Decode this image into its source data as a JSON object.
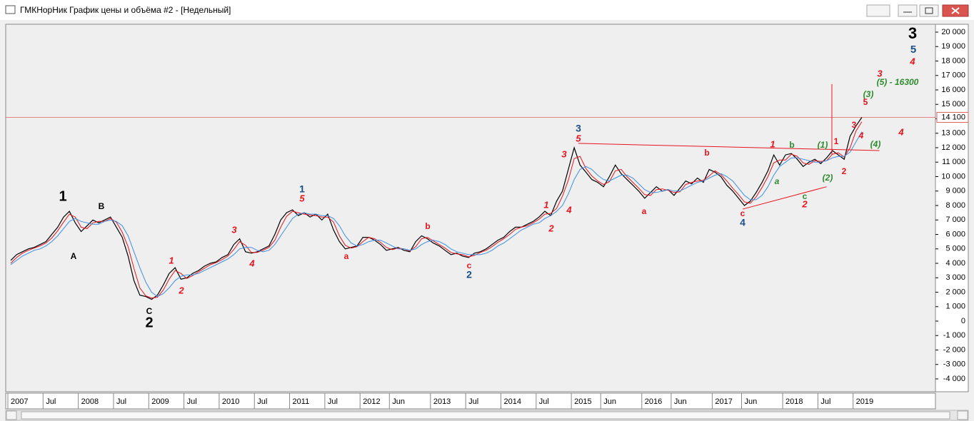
{
  "window": {
    "title": "ГМКНорНик График цены и объёма #2 - [Недельный]"
  },
  "chart_data": {
    "type": "line",
    "categories": [
      "2007",
      null,
      null,
      null,
      null,
      null,
      "Jul",
      null,
      null,
      null,
      null,
      null,
      "2008",
      null,
      null,
      null,
      null,
      null,
      "Jul",
      null,
      null,
      null,
      null,
      null,
      "2009",
      null,
      null,
      null,
      null,
      null,
      "Jul",
      null,
      null,
      null,
      null,
      null,
      "2010",
      null,
      null,
      null,
      null,
      null,
      "Jul",
      null,
      null,
      null,
      null,
      null,
      "2011",
      null,
      null,
      null,
      null,
      null,
      "Jul",
      null,
      null,
      null,
      null,
      null,
      "2012",
      null,
      null,
      null,
      null,
      "Jun",
      null,
      null,
      null,
      null,
      null,
      null,
      "2013",
      null,
      null,
      null,
      null,
      null,
      "Jul",
      null,
      null,
      null,
      null,
      null,
      "2014",
      null,
      null,
      null,
      null,
      null,
      "Jul",
      null,
      null,
      null,
      null,
      null,
      "2015",
      null,
      null,
      null,
      null,
      "Jun",
      null,
      null,
      null,
      null,
      null,
      null,
      "2016",
      null,
      null,
      null,
      null,
      "Jun",
      null,
      null,
      null,
      null,
      null,
      null,
      "2017",
      null,
      null,
      null,
      null,
      "Jun",
      null,
      null,
      null,
      null,
      null,
      null,
      "2018",
      null,
      null,
      null,
      null,
      null,
      "Jul",
      null,
      null,
      null,
      null,
      null,
      "2019",
      null
    ],
    "series": [
      {
        "color": "#000000",
        "values": [
          4200,
          4600,
          4800,
          5000,
          5100,
          5300,
          5500,
          6000,
          6500,
          7200,
          7600,
          6800,
          6200,
          6600,
          7000,
          6800,
          7000,
          7200,
          6500,
          5800,
          4500,
          2800,
          1800,
          1700,
          1500,
          1800,
          2500,
          3300,
          3700,
          2900,
          3000,
          3300,
          3500,
          3800,
          4000,
          4100,
          4400,
          4600,
          5300,
          5700,
          4800,
          4700,
          4800,
          5000,
          5200,
          6000,
          7000,
          7500,
          7700,
          7300,
          7500,
          7200,
          7400,
          7000,
          7400,
          6300,
          5500,
          5000,
          5100,
          5200,
          5800,
          5800,
          5600,
          5300,
          4900,
          5000,
          5100,
          4900,
          4800,
          5500,
          5900,
          5700,
          5400,
          5200,
          4900,
          4600,
          4700,
          4500,
          4400,
          4700,
          4800,
          5000,
          5300,
          5600,
          5800,
          6200,
          6500,
          6500,
          6700,
          6900,
          7200,
          7600,
          7300,
          8300,
          9000,
          10500,
          12000,
          10800,
          10300,
          9800,
          9600,
          9300,
          10000,
          10800,
          10200,
          9800,
          9400,
          9000,
          8500,
          8900,
          9300,
          9000,
          9100,
          8700,
          9200,
          9700,
          9500,
          9900,
          9600,
          10500,
          10300,
          10000,
          9400,
          9000,
          8500,
          8000,
          8300,
          8900,
          9600,
          10400,
          11500,
          10800,
          11500,
          11600,
          11200,
          10700,
          11000,
          11200,
          10900,
          11300,
          11800,
          11500,
          11200,
          12800,
          13500,
          14100
        ]
      },
      {
        "color": "#e8141e",
        "values": [
          4000,
          4400,
          4700,
          4900,
          5050,
          5200,
          5400,
          5750,
          6250,
          6850,
          7400,
          7200,
          6500,
          6400,
          6800,
          6900,
          6900,
          7100,
          6850,
          6150,
          5150,
          3650,
          2300,
          1750,
          1600,
          1650,
          2150,
          2900,
          3500,
          3300,
          2950,
          3150,
          3400,
          3650,
          3900,
          4050,
          4250,
          4500,
          4950,
          5500,
          5250,
          4750,
          4750,
          4900,
          5100,
          5600,
          6500,
          7250,
          7600,
          7500,
          7400,
          7350,
          7300,
          7200,
          7200,
          6850,
          5900,
          5250,
          5050,
          5150,
          5500,
          5800,
          5700,
          5450,
          5100,
          4950,
          5050,
          5000,
          4850,
          5150,
          5700,
          5800,
          5550,
          5300,
          5050,
          4750,
          4650,
          4600,
          4450,
          4550,
          4750,
          4900,
          5150,
          5450,
          5700,
          6000,
          6350,
          6500,
          6600,
          6800,
          7050,
          7400,
          7450,
          7800,
          8650,
          9750,
          11250,
          11400,
          10550,
          10050,
          9700,
          9450,
          9650,
          10400,
          10500,
          10000,
          9600,
          9200,
          8750,
          8700,
          9100,
          9150,
          9050,
          8900,
          8950,
          9450,
          9600,
          9700,
          9750,
          10050,
          10400,
          10150,
          9700,
          9200,
          8750,
          8250,
          8150,
          8600,
          9250,
          10000,
          10950,
          11150,
          11150,
          11550,
          11400,
          10950,
          10850,
          11100,
          11050,
          11100,
          11550,
          11650,
          11350,
          12000,
          13150,
          13800
        ]
      },
      {
        "color": "#3d8fe0",
        "values": [
          3900,
          4200,
          4500,
          4700,
          4900,
          5000,
          5200,
          5500,
          5900,
          6400,
          6900,
          7100,
          6900,
          6800,
          6700,
          6700,
          6900,
          7000,
          6900,
          6600,
          5900,
          4800,
          3700,
          2700,
          2000,
          1700,
          1900,
          2300,
          2800,
          3100,
          3200,
          3200,
          3300,
          3500,
          3700,
          3900,
          4100,
          4300,
          4600,
          5000,
          5100,
          5100,
          4900,
          4800,
          4900,
          5300,
          5900,
          6500,
          7100,
          7400,
          7500,
          7400,
          7400,
          7300,
          7300,
          7100,
          6600,
          5900,
          5400,
          5200,
          5300,
          5500,
          5600,
          5600,
          5400,
          5200,
          5000,
          5000,
          4900,
          5000,
          5300,
          5500,
          5600,
          5500,
          5300,
          5000,
          4800,
          4700,
          4600,
          4600,
          4600,
          4700,
          4900,
          5200,
          5400,
          5700,
          6000,
          6300,
          6500,
          6700,
          6800,
          7100,
          7300,
          7600,
          8000,
          8800,
          9800,
          10500,
          10700,
          10500,
          10100,
          9800,
          9700,
          9900,
          10100,
          10100,
          9900,
          9500,
          9100,
          8900,
          8900,
          9000,
          9100,
          9000,
          9000,
          9200,
          9400,
          9600,
          9700,
          9900,
          10100,
          10200,
          10000,
          9700,
          9200,
          8700,
          8400,
          8400,
          8700,
          9300,
          10100,
          10700,
          11000,
          11300,
          11300,
          11200,
          11100,
          11000,
          11000,
          11100,
          11300,
          11400,
          11400,
          11700,
          12400,
          13100
        ]
      }
    ],
    "ylim": [
      -4000,
      20000
    ],
    "yticks": [
      {
        "value": 20000,
        "label": "20 000"
      },
      {
        "value": 19000,
        "label": "19 000"
      },
      {
        "value": 18000,
        "label": "18 000"
      },
      {
        "value": 17000,
        "label": "17 000"
      },
      {
        "value": 16000,
        "label": "16 000"
      },
      {
        "value": 15000,
        "label": "15 000"
      },
      {
        "value": 14000,
        "label": "14 000"
      },
      {
        "value": 13000,
        "label": "13 000"
      },
      {
        "value": 12000,
        "label": "12 000"
      },
      {
        "value": 11000,
        "label": "11 000"
      },
      {
        "value": 10000,
        "label": "10 000"
      },
      {
        "value": 9000,
        "label": "9 000"
      },
      {
        "value": 8000,
        "label": "8 000"
      },
      {
        "value": 7000,
        "label": "7 000"
      },
      {
        "value": 6000,
        "label": "6 000"
      },
      {
        "value": 5000,
        "label": "5 000"
      },
      {
        "value": 4000,
        "label": "4 000"
      },
      {
        "value": 3000,
        "label": "3 000"
      },
      {
        "value": 2000,
        "label": "2 000"
      },
      {
        "value": 1000,
        "label": "1 000"
      },
      0,
      {
        "value": -1000,
        "label": "-1 000"
      },
      {
        "value": -2000,
        "label": "-2 000"
      },
      {
        "value": -3000,
        "label": "-3 000"
      },
      {
        "value": -4000,
        "label": "-4 000"
      }
    ],
    "level": {
      "value": 14100,
      "label": "14 100",
      "color": "#e06060"
    },
    "trendlines": [
      {
        "color": "#e8141e",
        "x": [
          96.7,
          148
        ],
        "y": [
          12300,
          11800
        ]
      },
      {
        "color": "#e8141e",
        "x": [
          124.7,
          139
        ],
        "y": [
          7750,
          9300
        ]
      },
      {
        "color": "#e8141e",
        "x": [
          139.9,
          139.9
        ],
        "y": [
          16400,
          11500
        ]
      }
    ],
    "annotations": [
      {
        "text": "1",
        "color": "#000000"
      },
      {
        "text": "A",
        "color": "#000000"
      },
      {
        "text": "B",
        "color": "#000000"
      },
      {
        "text": "C",
        "color": "#000000"
      },
      {
        "text": "2",
        "color": "#000000"
      },
      {
        "text": "1",
        "color": "#e8141e"
      },
      {
        "text": "2",
        "color": "#e8141e"
      },
      {
        "text": "3",
        "color": "#e8141e"
      },
      {
        "text": "4",
        "color": "#e8141e"
      },
      {
        "text": "1",
        "color": "#1a4f8a"
      },
      {
        "text": "5",
        "color": "#e8141e"
      },
      {
        "text": "a",
        "color": "#e8141e"
      },
      {
        "text": "b",
        "color": "#e8141e"
      },
      {
        "text": "c",
        "color": "#e8141e"
      },
      {
        "text": "2",
        "color": "#1a4f8a"
      },
      {
        "text": "1",
        "color": "#e8141e"
      },
      {
        "text": "2",
        "color": "#e8141e"
      },
      {
        "text": "4",
        "color": "#e8141e"
      },
      {
        "text": "3",
        "color": "#e8141e"
      },
      {
        "text": "3",
        "color": "#1a4f8a"
      },
      {
        "text": "5",
        "color": "#e8141e"
      },
      {
        "text": "a",
        "color": "#e8141e"
      },
      {
        "text": "b",
        "color": "#e8141e"
      },
      {
        "text": "c",
        "color": "#e8141e"
      },
      {
        "text": "4",
        "color": "#1a4f8a"
      },
      {
        "text": "1",
        "color": "#e8141e"
      },
      {
        "text": "a",
        "color": "#2e8b2e"
      },
      {
        "text": "b",
        "color": "#2e8b2e"
      },
      {
        "text": "2",
        "color": "#e8141e"
      },
      {
        "text": "c",
        "color": "#2e8b2e"
      },
      {
        "text": "(1)",
        "color": "#2e8b2e"
      },
      {
        "text": "(2)",
        "color": "#2e8b2e"
      },
      {
        "text": "1",
        "color": "#e8141e"
      },
      {
        "text": "2",
        "color": "#e8141e"
      },
      {
        "text": "3",
        "color": "#e8141e"
      },
      {
        "text": "4",
        "color": "#e8141e"
      },
      {
        "text": "5",
        "color": "#e8141e"
      },
      {
        "text": "(3)",
        "color": "#2e8b2e"
      },
      {
        "text": "(4)",
        "color": "#2e8b2e"
      },
      {
        "text": "3",
        "color": "#e8141e"
      },
      {
        "text": "(5) - 16300",
        "color": "#2e8b2e"
      },
      {
        "text": "4",
        "color": "#e8141e"
      },
      {
        "text": "3",
        "color": "#000000"
      },
      {
        "text": "5",
        "color": "#1a4f8a"
      },
      {
        "text": "4",
        "color": "#e8141e"
      }
    ]
  }
}
